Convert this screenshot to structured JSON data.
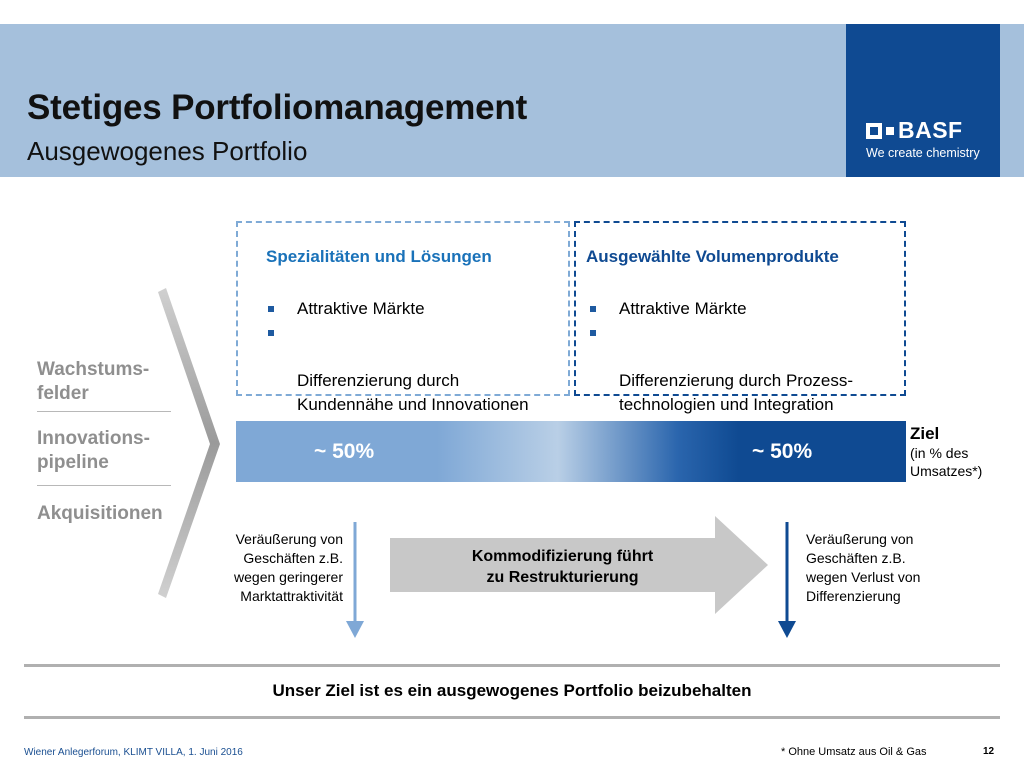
{
  "header": {
    "title": "Stetiges Portfoliomanagement",
    "subtitle": "Ausgewogenes Portfolio"
  },
  "logo": {
    "wordmark": "BASF",
    "tagline": "We create chemistry"
  },
  "left_levers": [
    "Wachstums-\nfelder",
    "Innovations-\npipeline",
    "Akquisitionen"
  ],
  "boxes": {
    "left": {
      "heading": "Spezialitäten und Lösungen",
      "bullets": [
        "Attraktive Märkte",
        "Differenzierung durch\nKundennähe und Innovationen"
      ]
    },
    "right": {
      "heading": "Ausgewählte Volumenprodukte",
      "bullets": [
        "Attraktive Märkte",
        "Differenzierung durch Prozess-\ntechnologien und Integration"
      ]
    }
  },
  "target_bar": {
    "left_share": "~ 50%",
    "right_share": "~ 50%",
    "label": "Ziel",
    "sublabel": "(in % des\nUmsatzes*)"
  },
  "divest_left": "Veräußerung von\nGeschäften z.B.\nwegen geringerer\nMarktattraktivität",
  "divest_right": "Veräußerung von\nGeschäften z.B.\nwegen Verlust von\nDifferenzierung",
  "commoditization": "Kommodifizierung führt\nzu Restrukturierung",
  "summary": "Unser Ziel ist es ein ausgewogenes Portfolio beizubehalten",
  "footer": {
    "event": "Wiener Anlegerforum, KLIMT VILLA, 1. Juni 2016",
    "note": "* Ohne Umsatz aus Oil & Gas",
    "page": "12"
  },
  "colors": {
    "header_bg": "#a5c0dc",
    "brand_blue": "#0f4a92",
    "light_blue": "#7fa8d6"
  }
}
